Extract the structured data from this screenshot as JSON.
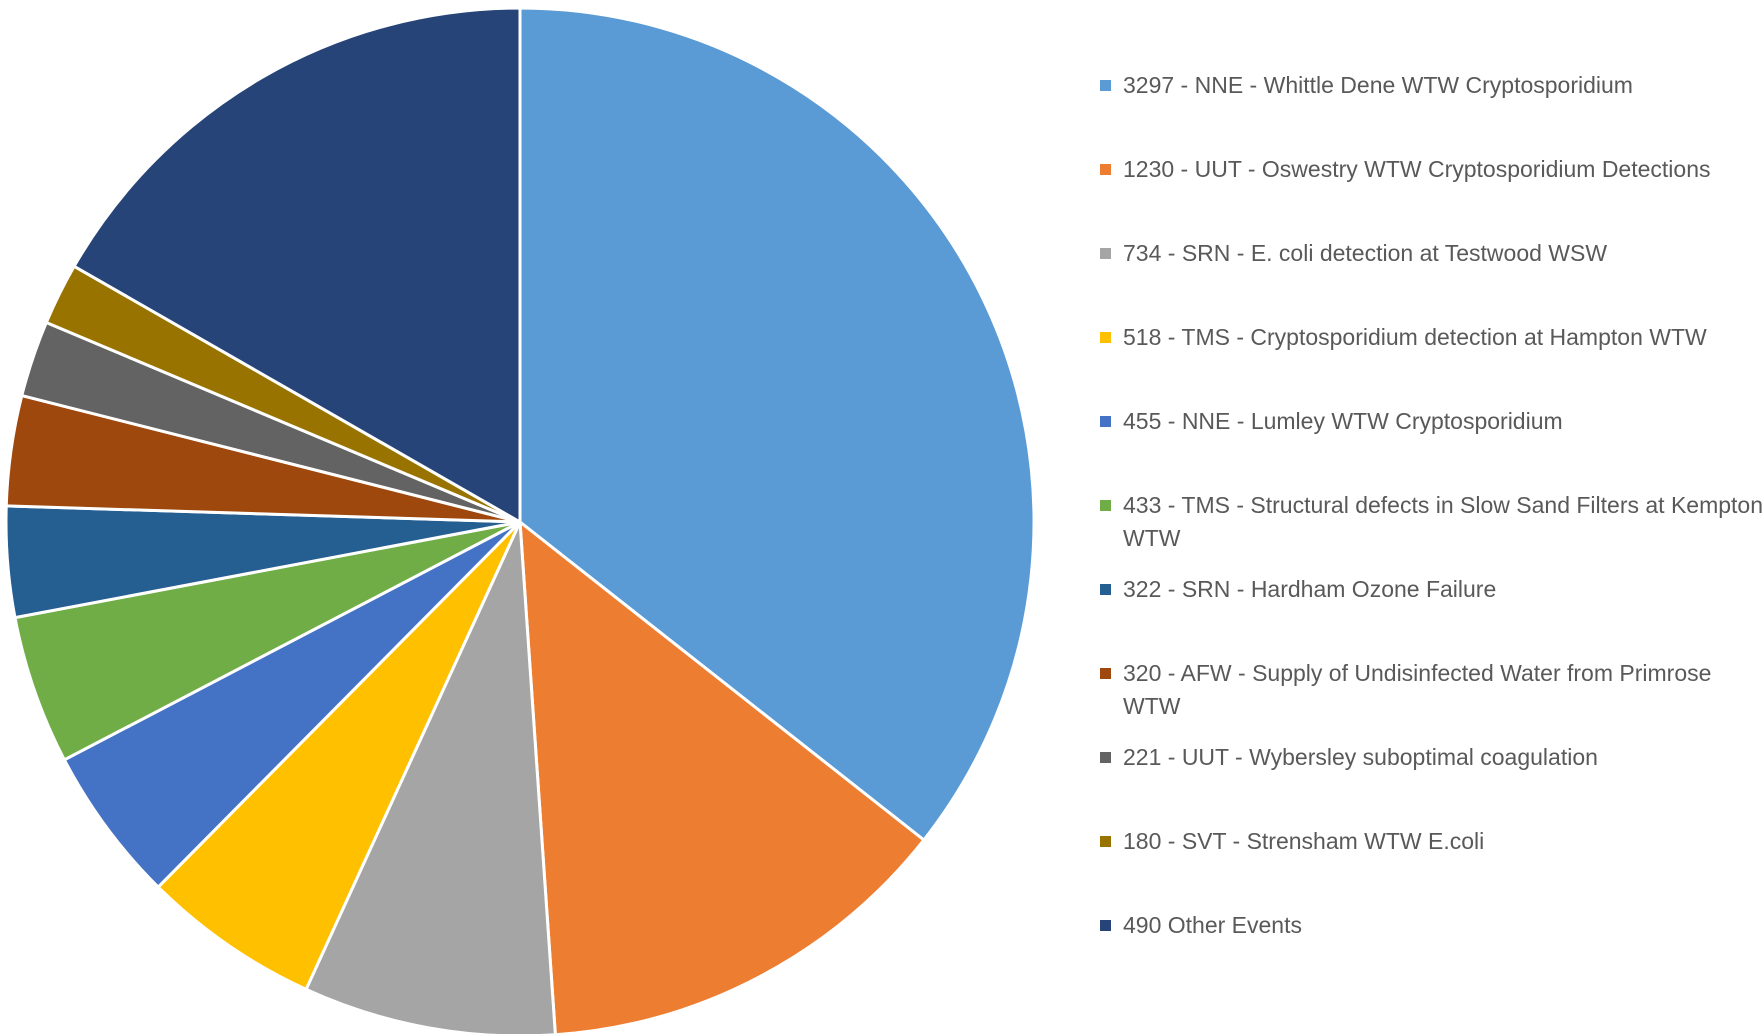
{
  "chart_data": {
    "type": "pie",
    "categories": [
      "3297 - NNE - Whittle Dene WTW Cryptosporidium",
      "1230 - UUT - Oswestry WTW Cryptosporidium Detections",
      "734 - SRN - E. coli detection at Testwood WSW",
      "518 - TMS - Cryptosporidium detection at Hampton WTW",
      "455 - NNE - Lumley WTW Cryptosporidium",
      "433 - TMS - Structural defects in Slow Sand Filters at Kempton WTW",
      "322 - SRN - Hardham Ozone Failure",
      "320 - AFW - Supply of Undisinfected Water from Primrose WTW",
      "221 - UUT - Wybersley suboptimal coagulation",
      "180 - SVT - Strensham WTW E.coli",
      "490 Other Events"
    ],
    "values": [
      3297,
      1230,
      734,
      518,
      455,
      433,
      322,
      320,
      221,
      180,
      1547
    ],
    "colors": [
      "#5b9bd5",
      "#ed7d31",
      "#a5a5a5",
      "#ffc000",
      "#4472c4",
      "#70ad47",
      "#255e91",
      "#9e480e",
      "#636363",
      "#997300",
      "#264478"
    ],
    "legend": "right"
  }
}
